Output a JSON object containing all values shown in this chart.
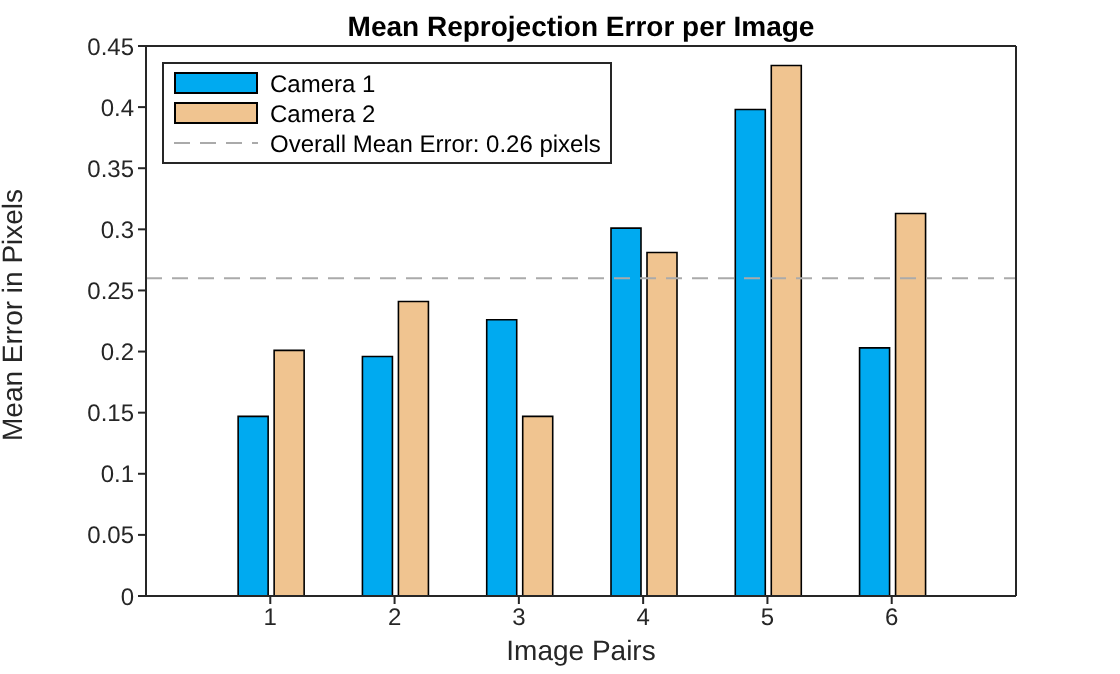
{
  "chart_data": {
    "type": "bar",
    "title": "Mean Reprojection Error per Image",
    "xlabel": "Image Pairs",
    "ylabel": "Mean Error in Pixels",
    "categories": [
      "1",
      "2",
      "3",
      "4",
      "5",
      "6"
    ],
    "series": [
      {
        "name": "Camera 1",
        "color": "#00aaf0",
        "values": [
          0.147,
          0.196,
          0.226,
          0.301,
          0.398,
          0.203
        ]
      },
      {
        "name": "Camera 2",
        "color": "#f0c490",
        "values": [
          0.201,
          0.241,
          0.147,
          0.281,
          0.434,
          0.313
        ]
      }
    ],
    "ylim": [
      0,
      0.45
    ],
    "yticks": [
      0,
      0.05,
      0.1,
      0.15,
      0.2,
      0.25,
      0.3,
      0.35,
      0.4,
      0.45
    ],
    "ref_lines": [
      {
        "axis": "y",
        "value": 0.26,
        "label": "Overall Mean Error: 0.26 pixels",
        "color": "#aaaaaa",
        "line_style": "dashed"
      }
    ],
    "legend": "top left"
  }
}
